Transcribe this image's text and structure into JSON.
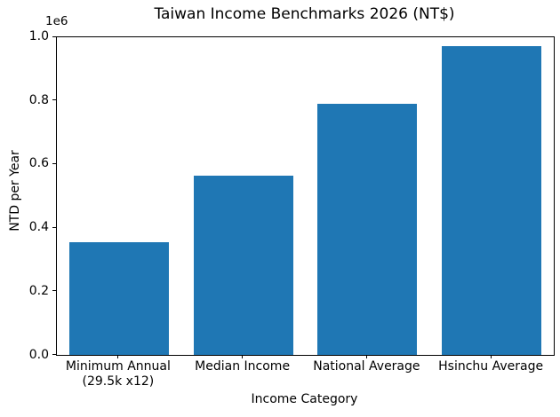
{
  "chart_data": {
    "type": "bar",
    "title": "Taiwan Income Benchmarks 2026 (NT$)",
    "xlabel": "Income Category",
    "ylabel": "NTD per Year",
    "y_offset_label": "1e6",
    "categories": [
      "Minimum Annual\n(29.5k x12)",
      "Median Income",
      "National Average",
      "Hsinchu Average"
    ],
    "values": [
      354000,
      563000,
      790000,
      970000
    ],
    "ylim": [
      0,
      1000000
    ],
    "yticks": [
      {
        "label": "0.0",
        "value": 0
      },
      {
        "label": "0.2",
        "value": 200000
      },
      {
        "label": "0.4",
        "value": 400000
      },
      {
        "label": "0.6",
        "value": 600000
      },
      {
        "label": "0.8",
        "value": 800000
      },
      {
        "label": "1.0",
        "value": 1000000
      }
    ],
    "bar_color": "#1f77b4",
    "text_color": "#000000",
    "grid": false,
    "legend": null,
    "bar_width_fraction": 0.8
  }
}
